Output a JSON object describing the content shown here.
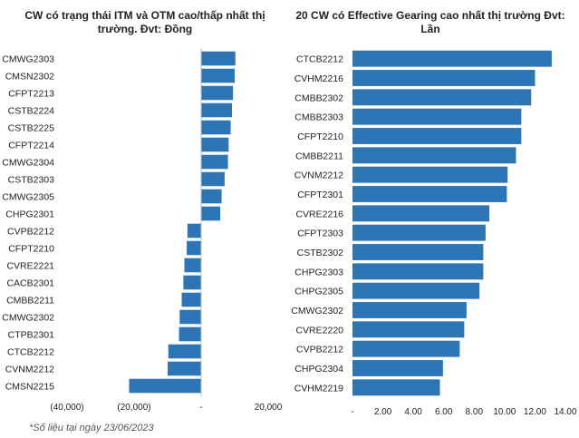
{
  "chart_data": [
    {
      "type": "bar",
      "orientation": "horizontal",
      "title": "CW có trạng thái ITM và OTM cao/thấp nhất thị trường. Đvt: Đồng",
      "categories": [
        "CMWG2303",
        "CMSN2302",
        "CFPT2213",
        "CSTB2224",
        "CSTB2225",
        "CFPT2214",
        "CMWG2304",
        "CSTB2303",
        "CMWG2305",
        "CHPG2301",
        "CVPB2212",
        "CFPT2210",
        "CVRE2221",
        "CACB2301",
        "CMBB2211",
        "CMWG2302",
        "CTPB2301",
        "CTCB2212",
        "CVNM2212",
        "CMSN2215"
      ],
      "values": [
        10200,
        10000,
        9500,
        9200,
        8800,
        8200,
        8000,
        7000,
        6100,
        5700,
        -4100,
        -4300,
        -5000,
        -5300,
        -5800,
        -6400,
        -6600,
        -9800,
        -10000,
        -21500
      ],
      "xlim": [
        -40000,
        20000
      ],
      "tick_values": [
        -40000,
        -20000,
        0,
        20000
      ],
      "tick_labels": [
        "(40,000)",
        "(20,000)",
        "-",
        "20,000"
      ],
      "color": "#2e75b6",
      "grid": false
    },
    {
      "type": "bar",
      "orientation": "horizontal",
      "title": "20 CW có Effective Gearing cao nhất thị trường Đvt: Lần",
      "categories": [
        "CTCB2212",
        "CVHM2216",
        "CMBB2302",
        "CMBB2303",
        "CFPT2210",
        "CMBB2211",
        "CVNM2212",
        "CFPT2301",
        "CVRE2216",
        "CFPT2303",
        "CSTB2302",
        "CHPG2303",
        "CHPG2305",
        "CMWG2302",
        "CVRE2220",
        "CVPB2212",
        "CHPG2304",
        "CVHM2219"
      ],
      "values": [
        13.1,
        12.0,
        11.75,
        11.1,
        11.1,
        10.75,
        10.2,
        10.15,
        9.0,
        8.75,
        8.6,
        8.6,
        8.35,
        7.5,
        7.35,
        7.05,
        5.95,
        5.75
      ],
      "xlim": [
        0,
        14
      ],
      "tick_values": [
        0,
        2,
        4,
        6,
        8,
        10,
        12,
        14
      ],
      "tick_labels": [
        "-",
        "2.00",
        "4.00",
        "6.00",
        "8.00",
        "10.00",
        "12.00",
        "14.00"
      ],
      "color": "#2e75b6",
      "grid": false
    }
  ],
  "footnote": "*Số liệu tại ngày 23/06/2023"
}
